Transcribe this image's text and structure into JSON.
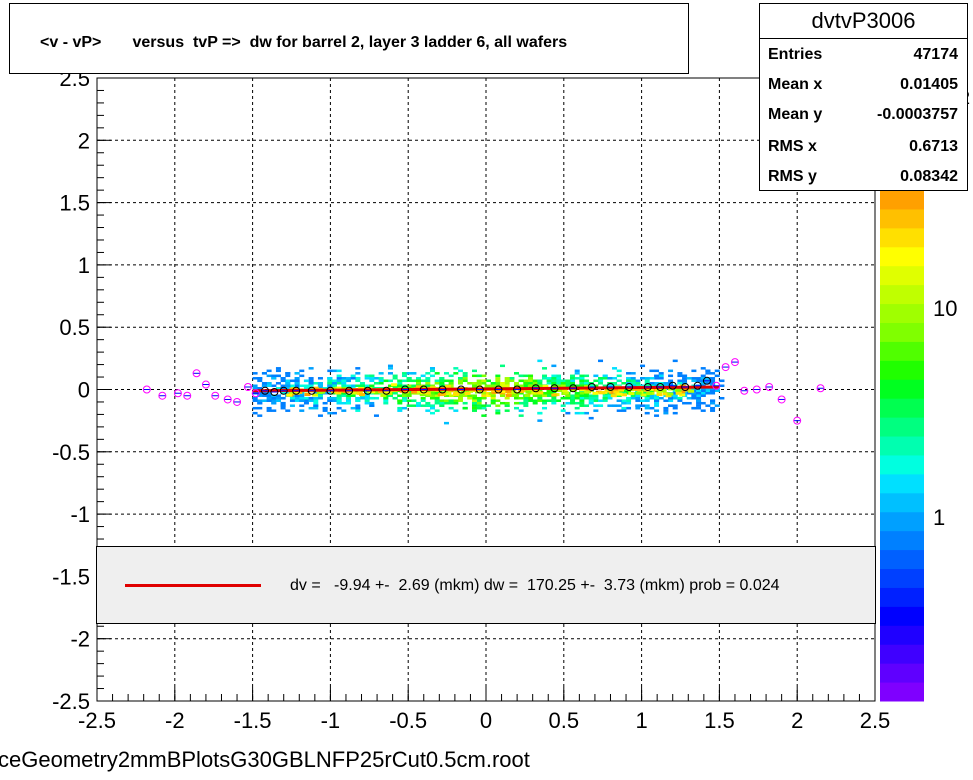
{
  "title": "<v - vP>       versus  tvP =>  dw for barrel 2, layer 3 ladder 6, all wafers",
  "stats": {
    "name": "dvtvP3006",
    "rows": [
      {
        "key": "Entries",
        "value": "47174"
      },
      {
        "key": "Mean x",
        "value": "0.01405"
      },
      {
        "key": "Mean y",
        "value": "-0.0003757"
      },
      {
        "key": "RMS x",
        "value": "0.6713"
      },
      {
        "key": "RMS y",
        "value": "0.08342"
      }
    ]
  },
  "legend": {
    "text": "dv =   -9.94 +-  2.69 (mkm) dw =  170.25 +-  3.73 (mkm) prob = 0.024",
    "line_color": "#e00000"
  },
  "footer": "ceGeometry2mmBPlotsG30GBLNFP25rCut0.5cm.root",
  "palette_label_10": "10",
  "palette_label_1": "1",
  "palette_exp": "2",
  "palette_colors": [
    "#7f00ff",
    "#5f00ff",
    "#3f00ff",
    "#1f00ff",
    "#0000ff",
    "#0020ff",
    "#0040ff",
    "#0060ff",
    "#0080ff",
    "#00a0ff",
    "#00c0ff",
    "#00e0ff",
    "#00ffe0",
    "#00ffb0",
    "#00ff80",
    "#00ff50",
    "#00ff20",
    "#20ff00",
    "#50ff00",
    "#80ff00",
    "#a0ff00",
    "#c0ff00",
    "#e0ff00",
    "#ffff00",
    "#ffe000",
    "#ffc000",
    "#ffa000"
  ],
  "chart_data": {
    "type": "heatmap",
    "x_ticks": [
      "-2.5",
      "-2",
      "-1.5",
      "-1",
      "-0.5",
      "0",
      "0.5",
      "1",
      "1.5",
      "2",
      "2.5"
    ],
    "y_ticks": [
      "2.5",
      "2",
      "1.5",
      "1",
      "0.5",
      "0",
      "-0.5",
      "-1",
      "-1.5",
      "-2",
      "-2.5"
    ],
    "xlim": [
      -2.5,
      2.5
    ],
    "ylim": [
      -2.5,
      2.5
    ],
    "grid": true,
    "density_band": {
      "x": [
        -1.5,
        1.5
      ],
      "y": [
        -0.5,
        0.5
      ]
    },
    "profile_points": {
      "x": [
        -2.18,
        -2.08,
        -1.98,
        -1.92,
        -1.86,
        -1.8,
        -1.74,
        -1.66,
        -1.6,
        -1.53,
        -1.48,
        -1.42,
        -1.36,
        -1.3,
        -1.22,
        -1.12,
        -1.0,
        -0.88,
        -0.76,
        -0.64,
        -0.52,
        -0.4,
        -0.28,
        -0.16,
        -0.04,
        0.08,
        0.2,
        0.32,
        0.44,
        0.56,
        0.68,
        0.8,
        0.92,
        1.04,
        1.12,
        1.2,
        1.28,
        1.36,
        1.42,
        1.48,
        1.54,
        1.6,
        1.66,
        1.74,
        1.82,
        1.9,
        2.0,
        2.15
      ],
      "y": [
        0.0,
        -0.05,
        -0.03,
        -0.05,
        0.13,
        0.04,
        -0.05,
        -0.08,
        -0.1,
        0.02,
        -0.03,
        -0.01,
        -0.02,
        -0.01,
        -0.01,
        -0.01,
        -0.01,
        -0.01,
        -0.01,
        -0.01,
        0.0,
        0.0,
        0.0,
        0.0,
        0.0,
        0.0,
        0.0,
        0.01,
        0.01,
        0.01,
        0.02,
        0.02,
        0.02,
        0.02,
        0.02,
        0.03,
        0.02,
        0.03,
        0.07,
        0.03,
        0.18,
        0.22,
        -0.01,
        0.0,
        0.02,
        -0.08,
        -0.25,
        0.01
      ]
    },
    "fit_line": {
      "x": [
        -1.5,
        1.5
      ],
      "y": [
        -0.01,
        0.02
      ],
      "color": "#e00000"
    }
  }
}
